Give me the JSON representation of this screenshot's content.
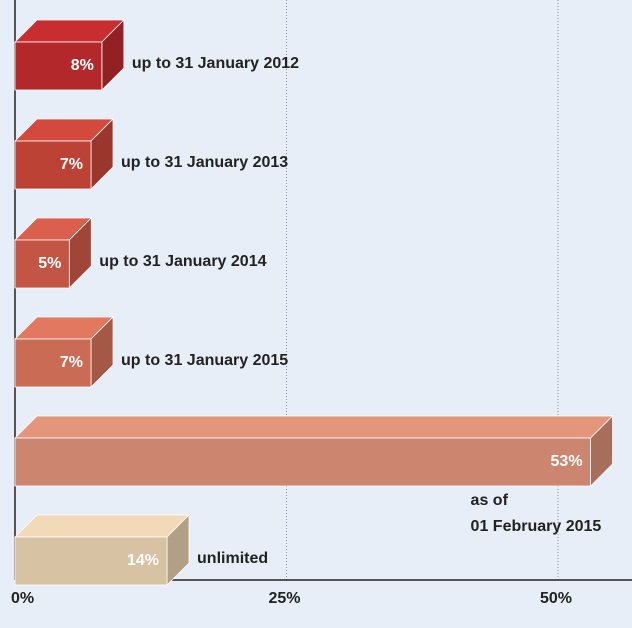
{
  "chart_data": {
    "type": "bar3d",
    "categories": [
      "up to 31 January 2012",
      "up to 31 January 2013",
      "up to 31 January 2014",
      "up to 31 January 2015",
      "as of\n01 February 2015",
      "unlimited"
    ],
    "values": [
      8,
      7,
      5,
      7,
      53,
      14
    ],
    "value_labels": [
      "8%",
      "7%",
      "5%",
      "7%",
      "53%",
      "14%"
    ],
    "colors": [
      "#b3282b",
      "#bc4236",
      "#c35545",
      "#c96b55",
      "#cc8670",
      "#d8c2a4"
    ],
    "xlim": [
      0,
      57
    ],
    "xticks": [
      {
        "value": 0,
        "label": "0%"
      },
      {
        "value": 25,
        "label": "25%"
      },
      {
        "value": 50,
        "label": "50%"
      }
    ],
    "grid": true
  }
}
